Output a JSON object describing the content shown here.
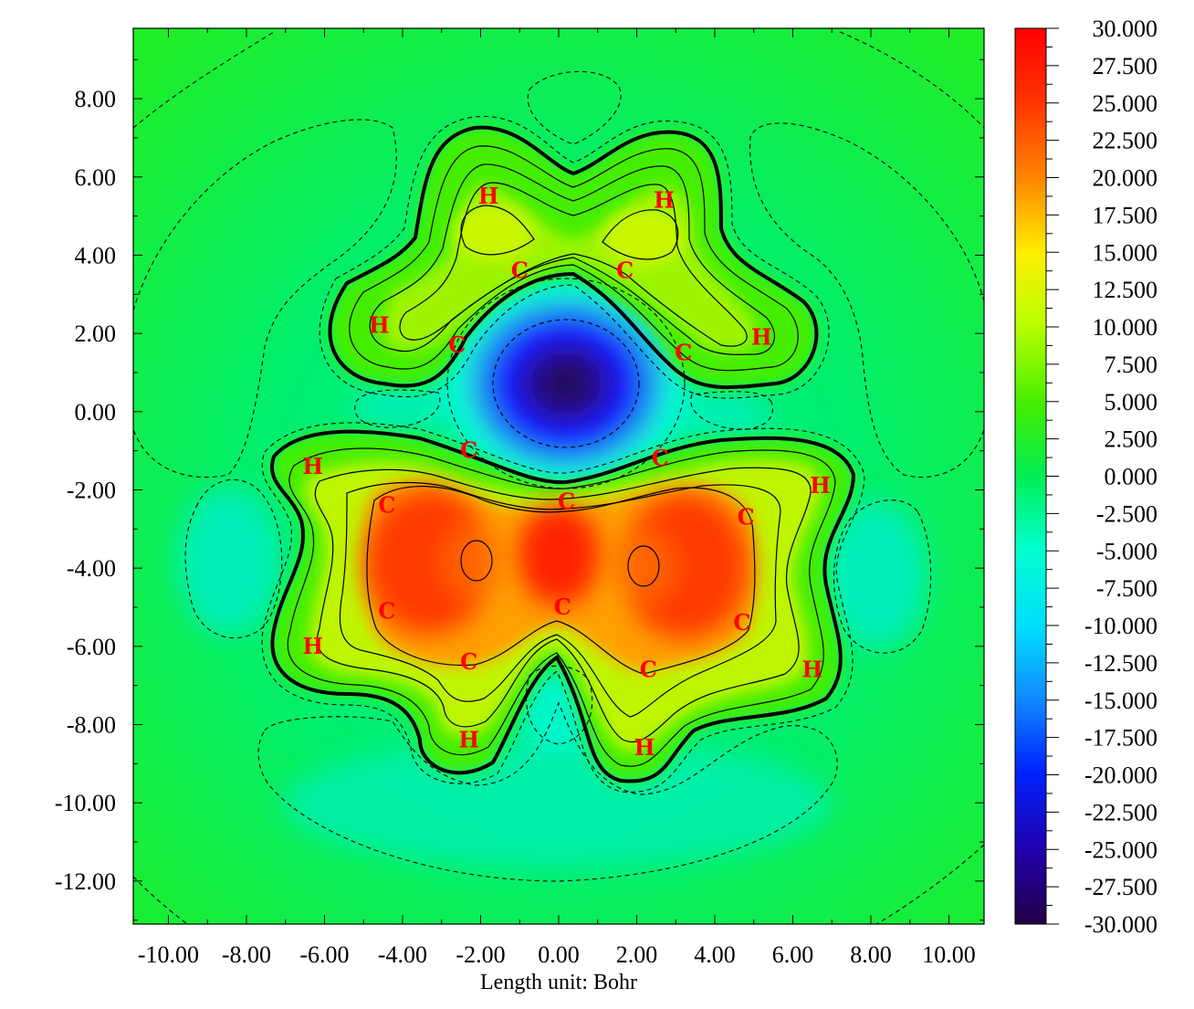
{
  "chart_data": {
    "type": "heatmap",
    "xlabel": "Length unit: Bohr",
    "x_ticks": [
      "-10.00",
      "-8.00",
      "-6.00",
      "-4.00",
      "-2.00",
      "0.00",
      "2.00",
      "4.00",
      "6.00",
      "8.00",
      "10.00"
    ],
    "y_ticks": [
      "8.00",
      "6.00",
      "4.00",
      "2.00",
      "0.00",
      "-2.00",
      "-4.00",
      "-6.00",
      "-8.00",
      "-10.00",
      "-12.00"
    ],
    "xlim": [
      -10.9,
      10.9
    ],
    "ylim": [
      -13.1,
      9.8
    ],
    "colorbar": {
      "min": -30.0,
      "max": 30.0,
      "labels": [
        "30.000",
        "27.500",
        "25.000",
        "22.500",
        "20.000",
        "17.500",
        "15.000",
        "12.500",
        "10.000",
        "7.500",
        "5.000",
        "2.500",
        "0.000",
        "-2.500",
        "-5.000",
        "-7.500",
        "-10.000",
        "-12.500",
        "-15.000",
        "-17.500",
        "-20.000",
        "-22.500",
        "-25.000",
        "-27.500",
        "-30.000"
      ]
    },
    "atoms": [
      {
        "label": "H",
        "x": -1.8,
        "y": 5.5
      },
      {
        "label": "H",
        "x": 2.7,
        "y": 5.4
      },
      {
        "label": "C",
        "x": -1.0,
        "y": 3.6
      },
      {
        "label": "C",
        "x": 1.7,
        "y": 3.6
      },
      {
        "label": "H",
        "x": -4.6,
        "y": 2.2
      },
      {
        "label": "C",
        "x": -2.6,
        "y": 1.7
      },
      {
        "label": "C",
        "x": 3.2,
        "y": 1.5
      },
      {
        "label": "H",
        "x": 5.2,
        "y": 1.9
      },
      {
        "label": "H",
        "x": -6.3,
        "y": -1.4
      },
      {
        "label": "C",
        "x": -2.3,
        "y": -1.0
      },
      {
        "label": "C",
        "x": 2.6,
        "y": -1.2
      },
      {
        "label": "H",
        "x": 6.7,
        "y": -1.9
      },
      {
        "label": "C",
        "x": -4.4,
        "y": -2.4
      },
      {
        "label": "C",
        "x": 0.2,
        "y": -2.3
      },
      {
        "label": "C",
        "x": 4.8,
        "y": -2.7
      },
      {
        "label": "C",
        "x": -4.4,
        "y": -5.1
      },
      {
        "label": "C",
        "x": 0.1,
        "y": -5.0
      },
      {
        "label": "C",
        "x": 4.7,
        "y": -5.4
      },
      {
        "label": "H",
        "x": -6.3,
        "y": -6.0
      },
      {
        "label": "C",
        "x": -2.3,
        "y": -6.4
      },
      {
        "label": "C",
        "x": 2.3,
        "y": -6.6
      },
      {
        "label": "H",
        "x": 6.5,
        "y": -6.6
      },
      {
        "label": "H",
        "x": -2.3,
        "y": -8.4
      },
      {
        "label": "H",
        "x": 2.2,
        "y": -8.6
      }
    ]
  }
}
